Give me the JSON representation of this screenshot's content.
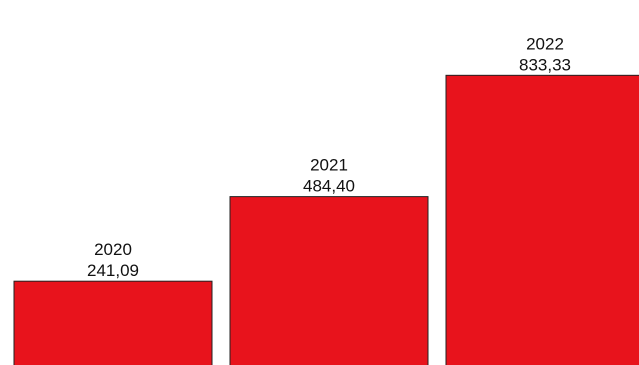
{
  "chart_data": {
    "type": "bar",
    "categories": [
      "2020",
      "2021",
      "2022"
    ],
    "values": [
      241.09,
      484.4,
      833.33
    ],
    "value_labels": [
      "241,09",
      "484,40",
      "833,33"
    ],
    "title": "",
    "xlabel": "",
    "ylabel": "",
    "ylim": [
      0,
      1050
    ],
    "grid": false,
    "legend": "none",
    "bar_color": "#e8131c",
    "bar_edge_color": "#222222"
  }
}
